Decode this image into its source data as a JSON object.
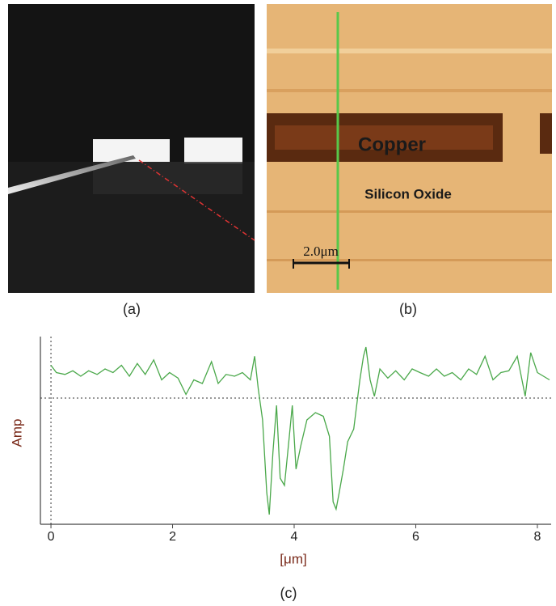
{
  "panels": {
    "a": {
      "caption": "(a)"
    },
    "b": {
      "caption": "(b)",
      "material_top": "Copper",
      "material_bottom": "Silicon Oxide",
      "scale_bar": "2.0μm"
    }
  },
  "chart_data": {
    "type": "line",
    "caption": "(c)",
    "xlabel": "[μm]",
    "ylabel": "Amp",
    "xlim": [
      -0.2,
      8.2
    ],
    "xticks": [
      0,
      2,
      4,
      6,
      8
    ],
    "ylim": [
      0,
      10
    ],
    "reference_y": 6.8,
    "reference_x": 0,
    "color": "#4aa84a",
    "x": [
      0,
      0.09,
      0.23,
      0.36,
      0.49,
      0.62,
      0.76,
      0.89,
      1.02,
      1.16,
      1.29,
      1.42,
      1.55,
      1.69,
      1.82,
      1.95,
      2.09,
      2.22,
      2.35,
      2.49,
      2.64,
      2.75,
      2.88,
      3.02,
      3.15,
      3.28,
      3.35,
      3.41,
      3.48,
      3.55,
      3.59,
      3.65,
      3.71,
      3.77,
      3.84,
      3.92,
      3.97,
      4.03,
      4.11,
      4.21,
      4.35,
      4.48,
      4.58,
      4.64,
      4.69,
      4.74,
      4.81,
      4.88,
      4.98,
      5.08,
      5.14,
      5.18,
      5.25,
      5.32,
      5.41,
      5.54,
      5.67,
      5.81,
      5.94,
      6.07,
      6.21,
      6.34,
      6.47,
      6.6,
      6.74,
      6.87,
      7.0,
      7.14,
      7.27,
      7.4,
      7.53,
      7.67,
      7.8,
      7.89,
      8.0,
      8.2
    ],
    "values": [
      8.6,
      8.2,
      8.1,
      8.3,
      8.0,
      8.3,
      8.1,
      8.4,
      8.2,
      8.6,
      8.0,
      8.7,
      8.1,
      8.9,
      7.8,
      8.2,
      7.9,
      7.0,
      7.8,
      7.6,
      8.8,
      7.6,
      8.1,
      8.0,
      8.2,
      7.8,
      9.1,
      7.3,
      5.6,
      1.6,
      0.4,
      3.8,
      6.4,
      2.4,
      2.0,
      4.7,
      6.4,
      2.9,
      4.2,
      5.6,
      6.0,
      5.8,
      4.7,
      1.1,
      0.7,
      1.6,
      2.9,
      4.4,
      5.1,
      7.8,
      9.1,
      9.6,
      7.8,
      6.9,
      8.4,
      7.9,
      8.3,
      7.8,
      8.4,
      8.2,
      8.0,
      8.4,
      8.0,
      8.2,
      7.8,
      8.4,
      8.1,
      9.1,
      7.8,
      8.2,
      8.3,
      9.1,
      6.9,
      9.3,
      8.2,
      7.8
    ]
  }
}
